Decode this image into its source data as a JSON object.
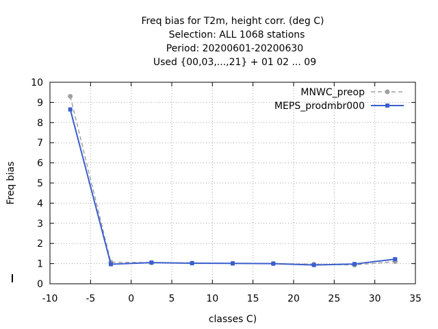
{
  "chart_data": {
    "type": "line",
    "title_lines": [
      "Freq bias  for T2m, height corr. (deg C)",
      "Selection: ALL    1068 stations",
      "Period: 20200601-20200630",
      "Used {00,03,...,21} + 01 02 ... 09"
    ],
    "xlabel": "classes C)",
    "ylabel": "Freq bias",
    "xlim": [
      -10,
      35
    ],
    "ylim": [
      0,
      10
    ],
    "xticks": [
      "-10",
      "-5",
      "0",
      "5",
      "10",
      "15",
      "20",
      "25",
      "30",
      "35"
    ],
    "yticks": [
      "0",
      "1",
      "2",
      "3",
      "4",
      "5",
      "6",
      "7",
      "8",
      "9",
      "10"
    ],
    "grid": true,
    "legend_position": "top-right",
    "series": [
      {
        "name": "MNWC_preop",
        "color": "#a0a0a0",
        "dashed": true,
        "marker": "circle",
        "x": [
          -7.5,
          -2.5,
          2.5,
          7.5,
          12.5,
          17.5,
          22.5,
          27.5,
          32.5
        ],
        "y": [
          9.3,
          1.07,
          1.05,
          1.03,
          1.01,
          1.0,
          0.97,
          0.93,
          1.1
        ]
      },
      {
        "name": "MEPS_prodmbr000",
        "color": "#3a5fcd",
        "dashed": false,
        "marker": "square",
        "x": [
          -7.5,
          -2.5,
          2.5,
          7.5,
          12.5,
          17.5,
          22.5,
          27.5,
          32.5
        ],
        "y": [
          8.65,
          0.97,
          1.05,
          1.02,
          1.01,
          1.0,
          0.93,
          0.98,
          1.22
        ]
      }
    ]
  }
}
